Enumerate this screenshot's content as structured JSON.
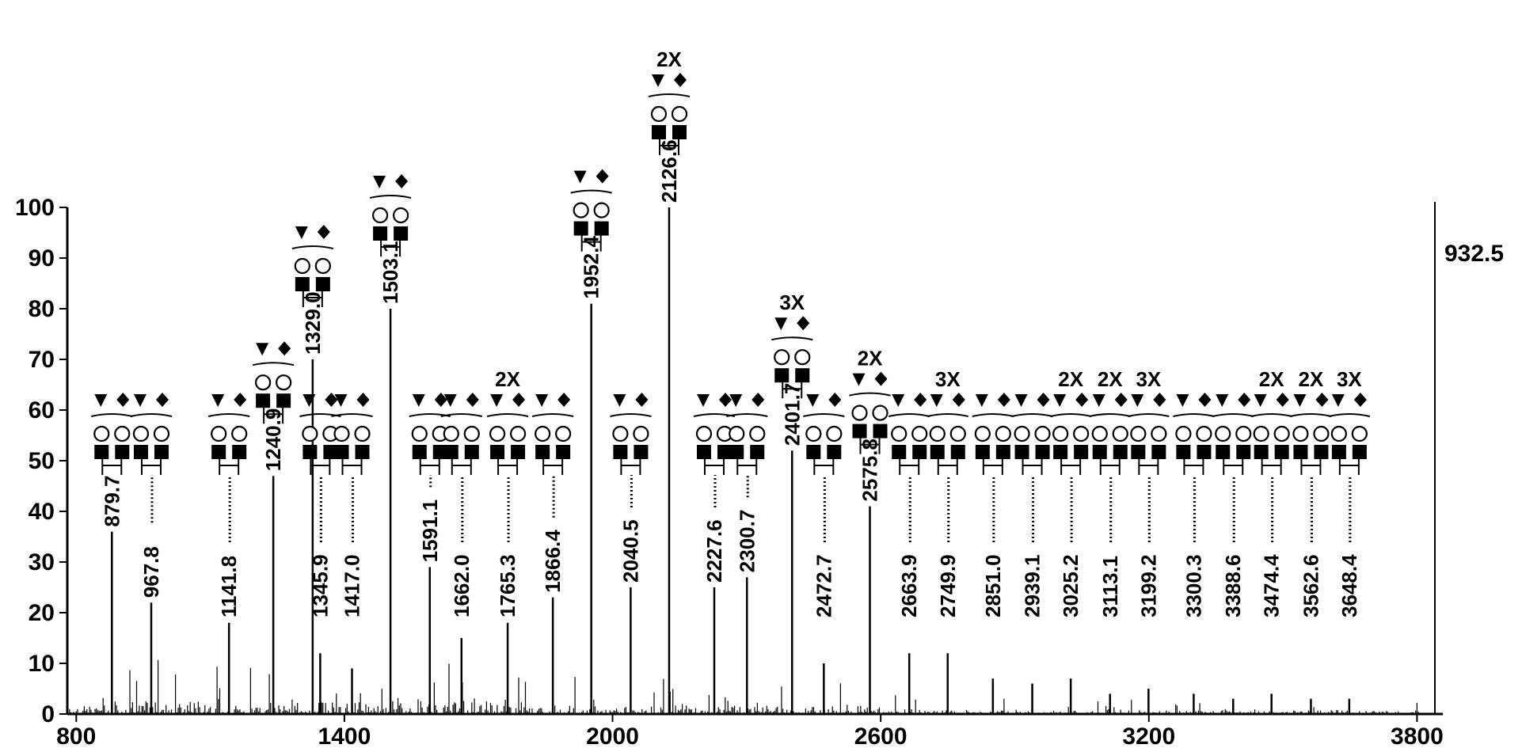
{
  "chart_data": {
    "type": "bar",
    "title": "",
    "xlabel": "",
    "ylabel": "",
    "xlim": [
      780,
      3840
    ],
    "ylim": [
      0,
      100
    ],
    "x_ticks": [
      "800",
      "1400",
      "2000",
      "2600",
      "3200",
      "3800"
    ],
    "y_ticks": [
      "0",
      "10",
      "20",
      "30",
      "40",
      "50",
      "60",
      "70",
      "80",
      "90",
      "100"
    ],
    "max_intensity_label": "932.5",
    "grid": false,
    "legend": "none",
    "peaks": [
      {
        "x": 879.7,
        "y": 36,
        "label": "879.7",
        "mult": ""
      },
      {
        "x": 967.8,
        "y": 22,
        "label": "967.8",
        "mult": ""
      },
      {
        "x": 1141.8,
        "y": 18,
        "label": "1141.8",
        "mult": ""
      },
      {
        "x": 1240.9,
        "y": 47,
        "label": "1240.9",
        "mult": ""
      },
      {
        "x": 1329.0,
        "y": 70,
        "label": "1329.0",
        "mult": ""
      },
      {
        "x": 1345.9,
        "y": 12,
        "label": "1345.9",
        "mult": ""
      },
      {
        "x": 1417.0,
        "y": 9,
        "label": "1417.0",
        "mult": ""
      },
      {
        "x": 1503.1,
        "y": 80,
        "label": "1503.1",
        "mult": ""
      },
      {
        "x": 1591.1,
        "y": 29,
        "label": "1591.1",
        "mult": ""
      },
      {
        "x": 1662.0,
        "y": 15,
        "label": "1662.0",
        "mult": ""
      },
      {
        "x": 1765.3,
        "y": 18,
        "label": "1765.3",
        "mult": "2X"
      },
      {
        "x": 1866.4,
        "y": 23,
        "label": "1866.4",
        "mult": ""
      },
      {
        "x": 1952.4,
        "y": 81,
        "label": "1952.4",
        "mult": ""
      },
      {
        "x": 2040.5,
        "y": 25,
        "label": "2040.5",
        "mult": ""
      },
      {
        "x": 2126.6,
        "y": 100,
        "label": "2126.6",
        "mult": "2X"
      },
      {
        "x": 2227.6,
        "y": 25,
        "label": "2227.6",
        "mult": ""
      },
      {
        "x": 2300.7,
        "y": 27,
        "label": "2300.7",
        "mult": ""
      },
      {
        "x": 2401.7,
        "y": 52,
        "label": "2401.7",
        "mult": "3X"
      },
      {
        "x": 2472.7,
        "y": 10,
        "label": "2472.7",
        "mult": ""
      },
      {
        "x": 2575.8,
        "y": 41,
        "label": "2575.8",
        "mult": "2X"
      },
      {
        "x": 2663.9,
        "y": 12,
        "label": "2663.9",
        "mult": ""
      },
      {
        "x": 2749.9,
        "y": 12,
        "label": "2749.9",
        "mult": "3X"
      },
      {
        "x": 2851.0,
        "y": 7,
        "label": "2851.0",
        "mult": ""
      },
      {
        "x": 2939.1,
        "y": 6,
        "label": "2939.1",
        "mult": ""
      },
      {
        "x": 3025.2,
        "y": 7,
        "label": "3025.2",
        "mult": "2X"
      },
      {
        "x": 3113.1,
        "y": 4,
        "label": "3113.1",
        "mult": "2X"
      },
      {
        "x": 3199.2,
        "y": 5,
        "label": "3199.2",
        "mult": "3X"
      },
      {
        "x": 3300.3,
        "y": 4,
        "label": "3300.3",
        "mult": ""
      },
      {
        "x": 3388.6,
        "y": 3,
        "label": "3388.6",
        "mult": ""
      },
      {
        "x": 3474.4,
        "y": 4,
        "label": "3474.4",
        "mult": "2X"
      },
      {
        "x": 3562.6,
        "y": 3,
        "label": "3562.6",
        "mult": "2X"
      },
      {
        "x": 3648.4,
        "y": 3,
        "label": "3648.4",
        "mult": "3X"
      }
    ]
  }
}
